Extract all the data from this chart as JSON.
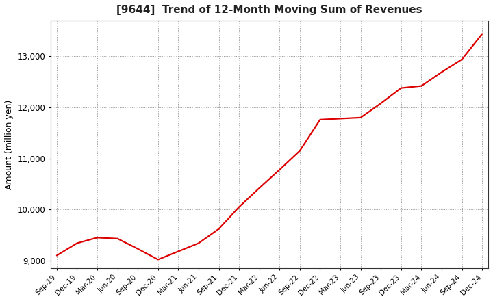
{
  "title": "[9644]  Trend of 12-Month Moving Sum of Revenues",
  "ylabel": "Amount (million yen)",
  "line_color": "#DD0000",
  "background_color": "#FFFFFF",
  "plot_bg_color": "#FFFFFF",
  "grid_color": "#999999",
  "ylim": [
    8850,
    13700
  ],
  "yticks": [
    9000,
    10000,
    11000,
    12000,
    13000
  ],
  "labels": [
    "Sep-19",
    "Dec-19",
    "Mar-20",
    "Jun-20",
    "Sep-20",
    "Dec-20",
    "Mar-21",
    "Jun-21",
    "Sep-21",
    "Dec-21",
    "Mar-22",
    "Jun-22",
    "Sep-22",
    "Dec-22",
    "Mar-23",
    "Jun-23",
    "Sep-23",
    "Dec-23",
    "Mar-24",
    "Jun-24",
    "Sep-24",
    "Dec-24"
  ],
  "values": [
    9100,
    9340,
    9450,
    9430,
    9230,
    9020,
    9180,
    9340,
    9620,
    10050,
    10420,
    10780,
    11150,
    11760,
    11780,
    11800,
    12080,
    12380,
    12420,
    12690,
    12940,
    13440
  ]
}
